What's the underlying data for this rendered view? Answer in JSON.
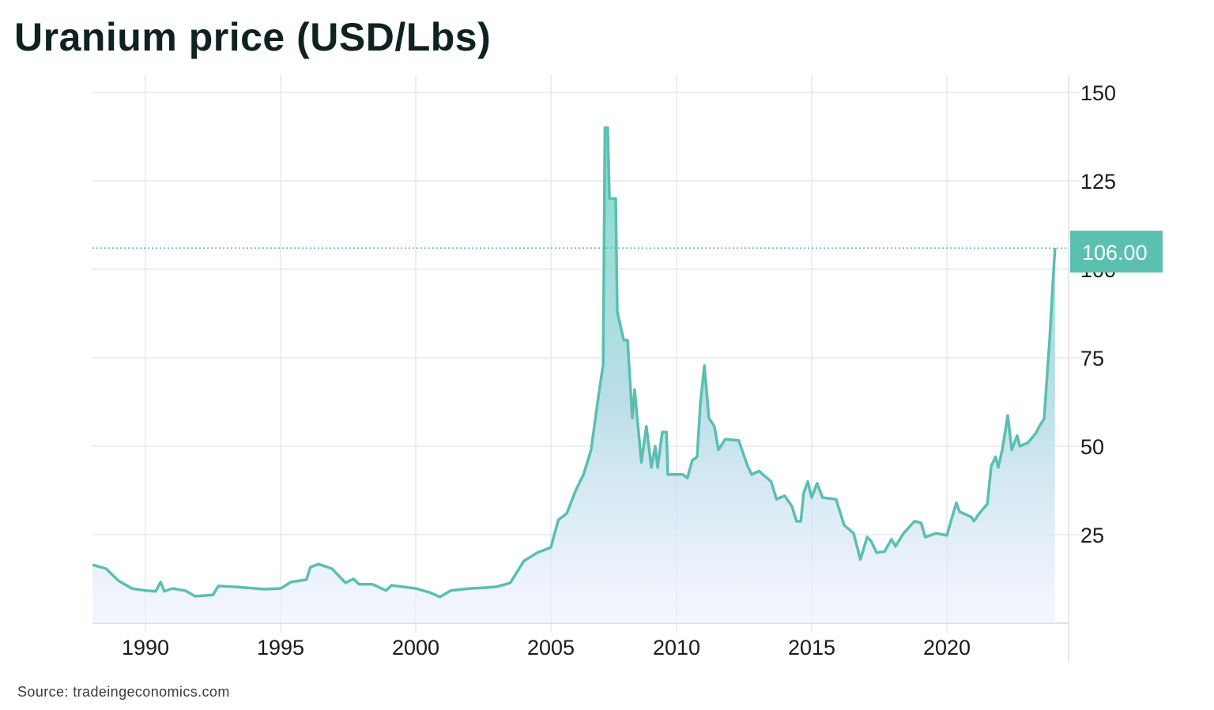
{
  "chart_data": {
    "type": "area",
    "title": "Uranium price (USD/Lbs)",
    "source": "Source: tradeingeconomics.com",
    "xlabel": "",
    "ylabel": "",
    "x_ticks": [
      1990,
      1995,
      2000,
      2005,
      2010,
      2015,
      2020
    ],
    "y_ticks": [
      25,
      50,
      75,
      100,
      125,
      150
    ],
    "ylim": [
      0,
      150
    ],
    "xlim": [
      1988,
      2024
    ],
    "grid": true,
    "y_axis_position": "right",
    "last_value_label": "106.00",
    "last_value": 106,
    "colors": {
      "line": "#5bbfb0",
      "fill_top": "#7fdcc8",
      "fill_bottom": "#eef0ff",
      "badge": "#5cc0b0",
      "title": "#0f2222"
    },
    "series": [
      {
        "x": [
          1988.04,
          1988.54,
          1989.0,
          1989.5,
          1990.0,
          1990.38,
          1990.56,
          1990.7,
          1991.0,
          1991.5,
          1991.84,
          1992.5,
          1992.7,
          1993.4,
          1994.4,
          1995.0,
          1995.38,
          1995.96,
          1996.1,
          1996.4,
          1996.9,
          1997.4,
          1997.7,
          1997.9,
          1998.4,
          1998.9,
          1999.1,
          2000.0,
          2000.5,
          2000.9,
          2001.3,
          2002.0,
          2002.5,
          2003.0,
          2003.5,
          2004.0,
          2004.5,
          2005.0,
          2005.3,
          2005.63,
          2006.0,
          2006.3,
          2006.6,
          2006.9,
          2007.08,
          2007.15,
          2007.26,
          2007.33,
          2007.58,
          2007.64,
          2007.9,
          2008.05,
          2008.24,
          2008.33,
          2008.6,
          2008.8,
          2009.0,
          2009.15,
          2009.25,
          2009.43,
          2009.6,
          2009.65,
          2010.23,
          2010.4,
          2010.58,
          2010.76,
          2010.88,
          2011.03,
          2011.2,
          2011.4,
          2011.55,
          2011.8,
          2012.3,
          2012.63,
          2012.78,
          2013.05,
          2013.5,
          2013.7,
          2014.0,
          2014.27,
          2014.44,
          2014.6,
          2014.7,
          2014.85,
          2015.0,
          2015.2,
          2015.4,
          2015.9,
          2016.2,
          2016.55,
          2016.8,
          2017.05,
          2017.2,
          2017.4,
          2017.7,
          2017.95,
          2018.1,
          2018.4,
          2018.8,
          2019.05,
          2019.2,
          2019.6,
          2020.0,
          2020.15,
          2020.35,
          2020.47,
          2020.9,
          2021.0,
          2021.2,
          2021.5,
          2021.64,
          2021.8,
          2021.9,
          2022.05,
          2022.25,
          2022.4,
          2022.6,
          2022.7,
          2023.0,
          2023.3,
          2023.45,
          2023.6,
          2023.7,
          2023.8,
          2023.9,
          2024.0
        ],
        "y": [
          16.5,
          15.4,
          12,
          9.8,
          9.2,
          9,
          11.6,
          9,
          9.8,
          9.1,
          7.6,
          8,
          10.5,
          10.2,
          9.6,
          9.8,
          11.6,
          12.3,
          15.8,
          16.7,
          15.4,
          11.4,
          12.5,
          11,
          11,
          9.2,
          10.7,
          9.8,
          8.7,
          7.4,
          9.2,
          9.8,
          10,
          10.3,
          11.4,
          17.6,
          19.9,
          21.4,
          29.2,
          31,
          37.7,
          42,
          49,
          64.5,
          73,
          140,
          140,
          120,
          120,
          88,
          80,
          80,
          58,
          66,
          45.5,
          55.6,
          44,
          50,
          44,
          54,
          54,
          42,
          42,
          41,
          46,
          47,
          62,
          72.8,
          58,
          55.6,
          49,
          52,
          51.6,
          44.4,
          42,
          43,
          40,
          35,
          36,
          33,
          28.8,
          28.8,
          36.6,
          40,
          35.5,
          39.5,
          35.5,
          35,
          27.7,
          25.4,
          18,
          24.3,
          23.2,
          19.9,
          20.3,
          23.7,
          21.7,
          25.4,
          28.8,
          28.3,
          24.3,
          25.4,
          24.8,
          28.8,
          34,
          31.5,
          30,
          28.8,
          31,
          33.7,
          44.4,
          47,
          44,
          49,
          58.7,
          49,
          53,
          50,
          51,
          53.8,
          56,
          57.8,
          69,
          80,
          93.5,
          106
        ]
      }
    ]
  }
}
